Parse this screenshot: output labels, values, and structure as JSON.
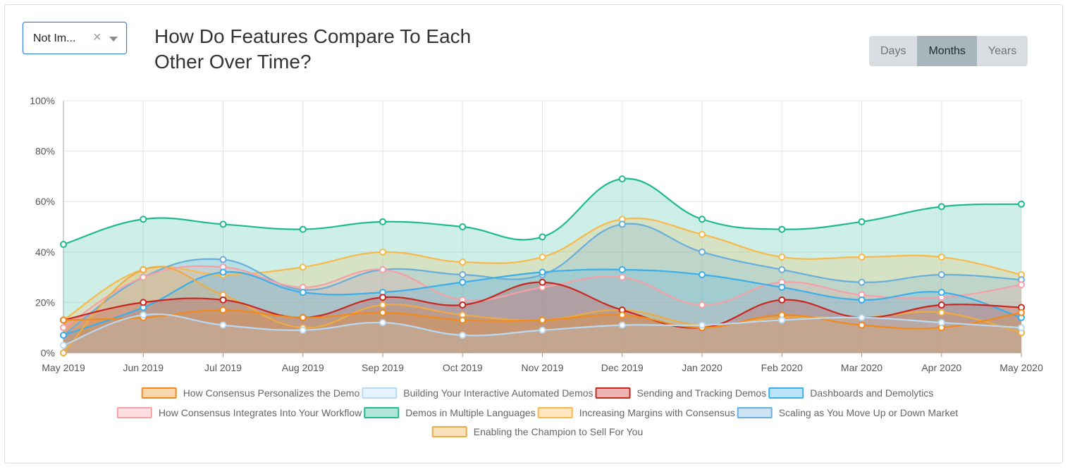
{
  "filter": {
    "selected": "Not Im...",
    "clear_glyph": "×"
  },
  "title": "How Do Features Compare To Each Other Over Time?",
  "title_lines": [
    "How Do Features Compare To Each",
    "Other Over Time?"
  ],
  "range_buttons": [
    {
      "label": "Days",
      "active": false
    },
    {
      "label": "Months",
      "active": true
    },
    {
      "label": "Years",
      "active": false
    }
  ],
  "chart_data": {
    "type": "area",
    "categories": [
      "May 2019",
      "Jun 2019",
      "Jul 2019",
      "Aug 2019",
      "Sep 2019",
      "Oct 2019",
      "Nov 2019",
      "Dec 2019",
      "Jan 2020",
      "Feb 2020",
      "Mar 2020",
      "Apr 2020",
      "May 2020"
    ],
    "y_ticks": [
      "0%",
      "20%",
      "40%",
      "60%",
      "80%",
      "100%"
    ],
    "ylim": [
      0,
      100
    ],
    "grid": true,
    "legend_position": "bottom",
    "series": [
      {
        "name": "How Consensus Personalizes the Demo",
        "color": "#f28a1a",
        "values": [
          13,
          14,
          17,
          14,
          16,
          13,
          13,
          15,
          10,
          15,
          11,
          10,
          16
        ]
      },
      {
        "name": "Building Your Interactive Automated Demos",
        "color": "#b8daf5",
        "values": [
          3,
          15,
          11,
          9,
          12,
          7,
          9,
          11,
          11,
          13,
          14,
          12,
          10
        ]
      },
      {
        "name": "Sending and Tracking Demos",
        "color": "#c8261e",
        "values": [
          13,
          20,
          21,
          14,
          22,
          19,
          28,
          17,
          10,
          21,
          14,
          19,
          18
        ]
      },
      {
        "name": "Dashboards and Demolytics",
        "color": "#3aaeea",
        "values": [
          7,
          18,
          32,
          24,
          24,
          28,
          32,
          33,
          31,
          26,
          21,
          24,
          14
        ]
      },
      {
        "name": "How Consensus Integrates Into Your Workflow",
        "color": "#f4a0a6",
        "values": [
          10,
          30,
          34,
          26,
          33,
          21,
          26,
          30,
          19,
          28,
          23,
          22,
          27
        ]
      },
      {
        "name": "Demos in Multiple Languages",
        "color": "#20b890",
        "values": [
          43,
          53,
          51,
          49,
          52,
          50,
          46,
          69,
          53,
          49,
          52,
          58,
          59
        ]
      },
      {
        "name": "Increasing Margins with Consensus",
        "color": "#f8b84a",
        "values": [
          13,
          33,
          31,
          34,
          40,
          36,
          38,
          53,
          47,
          38,
          38,
          38,
          31
        ]
      },
      {
        "name": "Scaling as You Move Up or Down Market",
        "color": "#6aaedb",
        "values": [
          7,
          30,
          37,
          25,
          33,
          31,
          31,
          51,
          40,
          33,
          28,
          31,
          29
        ]
      },
      {
        "name": "Enabling the Champion to Sell For You",
        "color": "#eeaa44",
        "values": [
          0,
          33,
          23,
          10,
          19,
          15,
          13,
          17,
          11,
          14,
          14,
          16,
          8
        ]
      }
    ]
  }
}
